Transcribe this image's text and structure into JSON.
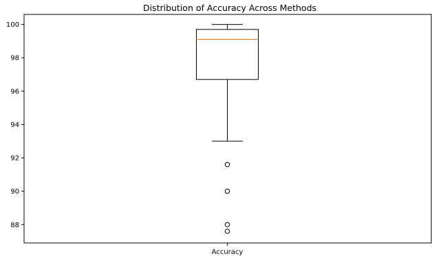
{
  "chart_data": {
    "type": "box",
    "title": "Distribution of Accuracy Across Methods",
    "xlabel": "",
    "ylabel": "",
    "categories": [
      "Accuracy"
    ],
    "ylim": [
      86.9,
      100.6
    ],
    "yticks": [
      88,
      90,
      92,
      94,
      96,
      98,
      100
    ],
    "box": {
      "whisker_low": 93.0,
      "q1": 96.7,
      "median": 99.1,
      "q3": 99.7,
      "whisker_high": 100.0,
      "outliers": [
        91.6,
        90.0,
        88.0,
        87.6
      ]
    },
    "grid": false,
    "colors": {
      "box": "#000000",
      "median": "#ff7f0e",
      "axes": "#000000"
    }
  }
}
